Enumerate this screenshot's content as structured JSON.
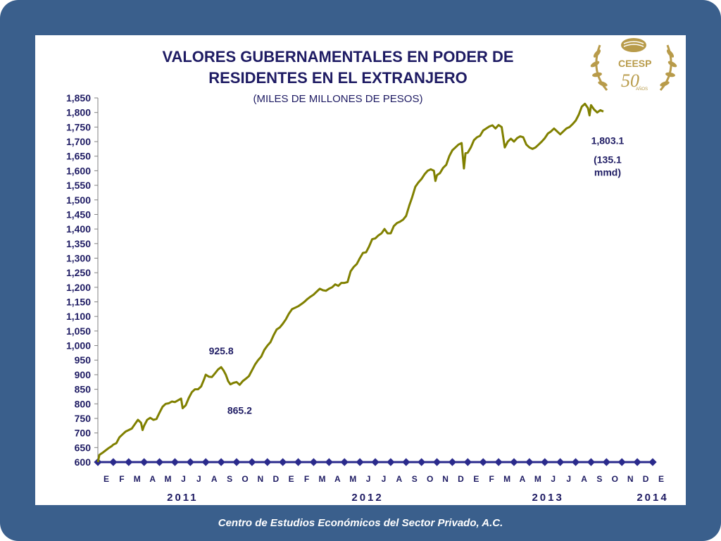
{
  "title_line1": "VALORES GUBERNAMENTALES EN PODER DE",
  "title_line2": "RESIDENTES EN EL EXTRANJERO",
  "subtitle": "(MILES DE MILLONES DE PESOS)",
  "footer": "Centro de Estudios Económicos del Sector Privado, A.C.",
  "logo": {
    "name": "CEESP",
    "anniversary": "50",
    "anos": "AÑOS"
  },
  "colors": {
    "background": "#3a5f8c",
    "line": "#808000",
    "text": "#1e1b63",
    "axis_markers": "#2a2a8c",
    "logo": "#b89b4a"
  },
  "chart_data": {
    "type": "line",
    "title": "VALORES GUBERNAMENTALES EN PODER DE RESIDENTES EN EL EXTRANJERO",
    "subtitle": "(MILES DE MILLONES DE PESOS)",
    "ylim": [
      600,
      1850
    ],
    "yticks": [
      "600",
      "650",
      "700",
      "750",
      "800",
      "850",
      "900",
      "950",
      "1,000",
      "1,050",
      "1,100",
      "1,150",
      "1,200",
      "1,250",
      "1,300",
      "1,350",
      "1,400",
      "1,450",
      "1,500",
      "1,550",
      "1,600",
      "1,650",
      "1,700",
      "1,750",
      "1,800",
      "1,850"
    ],
    "month_labels": [
      "E",
      "F",
      "M",
      "A",
      "M",
      "J",
      "J",
      "A",
      "S",
      "O",
      "N",
      "D",
      "E",
      "F",
      "M",
      "A",
      "M",
      "J",
      "J",
      "A",
      "S",
      "O",
      "N",
      "D",
      "E",
      "F",
      "M",
      "A",
      "M",
      "J",
      "J",
      "A",
      "S",
      "O",
      "N",
      "D",
      "E"
    ],
    "year_labels": [
      "2011",
      "2012",
      "2013",
      "2014"
    ],
    "x_unit": "months since Jan 2011",
    "series": [
      {
        "name": "",
        "points": [
          [
            0,
            600
          ],
          [
            0.1,
            625
          ],
          [
            0.3,
            632
          ],
          [
            0.5,
            640
          ],
          [
            0.7,
            648
          ],
          [
            0.9,
            655
          ],
          [
            1.0,
            660
          ],
          [
            1.2,
            665
          ],
          [
            1.4,
            685
          ],
          [
            1.6,
            695
          ],
          [
            1.8,
            705
          ],
          [
            2.0,
            710
          ],
          [
            2.2,
            715
          ],
          [
            2.4,
            730
          ],
          [
            2.6,
            745
          ],
          [
            2.8,
            735
          ],
          [
            2.9,
            710
          ],
          [
            3.0,
            725
          ],
          [
            3.2,
            745
          ],
          [
            3.4,
            752
          ],
          [
            3.6,
            745
          ],
          [
            3.8,
            748
          ],
          [
            4.0,
            770
          ],
          [
            4.2,
            790
          ],
          [
            4.4,
            800
          ],
          [
            4.6,
            802
          ],
          [
            4.8,
            808
          ],
          [
            5.0,
            806
          ],
          [
            5.2,
            812
          ],
          [
            5.4,
            818
          ],
          [
            5.5,
            785
          ],
          [
            5.7,
            795
          ],
          [
            5.9,
            820
          ],
          [
            6.1,
            840
          ],
          [
            6.3,
            850
          ],
          [
            6.5,
            850
          ],
          [
            6.7,
            860
          ],
          [
            6.9,
            885
          ],
          [
            7.0,
            900
          ],
          [
            7.2,
            893
          ],
          [
            7.4,
            892
          ],
          [
            7.6,
            905
          ],
          [
            7.8,
            918
          ],
          [
            8.0,
            925.8
          ],
          [
            8.15,
            915
          ],
          [
            8.3,
            900
          ],
          [
            8.45,
            878
          ],
          [
            8.6,
            867
          ],
          [
            8.8,
            872
          ],
          [
            9.0,
            875
          ],
          [
            9.2,
            865.2
          ],
          [
            9.4,
            878
          ],
          [
            9.6,
            886
          ],
          [
            9.8,
            895
          ],
          [
            10.0,
            915
          ],
          [
            10.2,
            935
          ],
          [
            10.4,
            950
          ],
          [
            10.6,
            962
          ],
          [
            10.8,
            985
          ],
          [
            11.0,
            1000
          ],
          [
            11.2,
            1012
          ],
          [
            11.4,
            1035
          ],
          [
            11.6,
            1055
          ],
          [
            11.8,
            1062
          ],
          [
            12.0,
            1075
          ],
          [
            12.2,
            1090
          ],
          [
            12.4,
            1110
          ],
          [
            12.6,
            1125
          ],
          [
            12.8,
            1130
          ],
          [
            13.0,
            1135
          ],
          [
            13.2,
            1142
          ],
          [
            13.4,
            1150
          ],
          [
            13.6,
            1160
          ],
          [
            13.8,
            1168
          ],
          [
            14.0,
            1175
          ],
          [
            14.2,
            1185
          ],
          [
            14.4,
            1195
          ],
          [
            14.6,
            1190
          ],
          [
            14.8,
            1188
          ],
          [
            15.0,
            1195
          ],
          [
            15.2,
            1200
          ],
          [
            15.4,
            1210
          ],
          [
            15.6,
            1205
          ],
          [
            15.8,
            1215
          ],
          [
            16.0,
            1215
          ],
          [
            16.2,
            1218
          ],
          [
            16.4,
            1255
          ],
          [
            16.6,
            1270
          ],
          [
            16.8,
            1280
          ],
          [
            17.0,
            1300
          ],
          [
            17.2,
            1318
          ],
          [
            17.4,
            1320
          ],
          [
            17.6,
            1340
          ],
          [
            17.8,
            1365
          ],
          [
            18.0,
            1368
          ],
          [
            18.2,
            1378
          ],
          [
            18.4,
            1385
          ],
          [
            18.6,
            1400
          ],
          [
            18.8,
            1385
          ],
          [
            19.0,
            1385
          ],
          [
            19.2,
            1410
          ],
          [
            19.4,
            1420
          ],
          [
            19.6,
            1425
          ],
          [
            19.8,
            1432
          ],
          [
            20.0,
            1445
          ],
          [
            20.2,
            1480
          ],
          [
            20.4,
            1510
          ],
          [
            20.6,
            1545
          ],
          [
            20.8,
            1560
          ],
          [
            21.0,
            1572
          ],
          [
            21.2,
            1588
          ],
          [
            21.4,
            1600
          ],
          [
            21.6,
            1605
          ],
          [
            21.8,
            1600
          ],
          [
            21.9,
            1565
          ],
          [
            22.0,
            1585
          ],
          [
            22.2,
            1592
          ],
          [
            22.4,
            1610
          ],
          [
            22.6,
            1620
          ],
          [
            22.8,
            1650
          ],
          [
            23.0,
            1670
          ],
          [
            23.2,
            1680
          ],
          [
            23.4,
            1690
          ],
          [
            23.6,
            1695
          ],
          [
            23.75,
            1608
          ],
          [
            23.85,
            1660
          ],
          [
            24.0,
            1662
          ],
          [
            24.2,
            1680
          ],
          [
            24.4,
            1705
          ],
          [
            24.6,
            1715
          ],
          [
            24.8,
            1720
          ],
          [
            25.0,
            1738
          ],
          [
            25.2,
            1745
          ],
          [
            25.4,
            1752
          ],
          [
            25.6,
            1756
          ],
          [
            25.8,
            1745
          ],
          [
            26.0,
            1757
          ],
          [
            26.2,
            1750
          ],
          [
            26.4,
            1680
          ],
          [
            26.6,
            1700
          ],
          [
            26.8,
            1710
          ],
          [
            27.0,
            1700
          ],
          [
            27.2,
            1712
          ],
          [
            27.4,
            1718
          ],
          [
            27.6,
            1715
          ],
          [
            27.8,
            1690
          ],
          [
            28.0,
            1680
          ],
          [
            28.2,
            1675
          ],
          [
            28.4,
            1680
          ],
          [
            28.6,
            1690
          ],
          [
            28.8,
            1700
          ],
          [
            29.0,
            1712
          ],
          [
            29.2,
            1728
          ],
          [
            29.4,
            1735
          ],
          [
            29.6,
            1745
          ],
          [
            29.8,
            1735
          ],
          [
            30.0,
            1725
          ],
          [
            30.2,
            1735
          ],
          [
            30.4,
            1745
          ],
          [
            30.6,
            1750
          ],
          [
            30.8,
            1760
          ],
          [
            31.0,
            1772
          ],
          [
            31.2,
            1792
          ],
          [
            31.4,
            1820
          ],
          [
            31.6,
            1830
          ],
          [
            31.8,
            1815
          ],
          [
            31.9,
            1790
          ],
          [
            32.0,
            1825
          ],
          [
            32.2,
            1810
          ],
          [
            32.4,
            1800
          ],
          [
            32.6,
            1808
          ],
          [
            32.8,
            1803.1
          ]
        ]
      }
    ],
    "annotations": [
      {
        "text": "925.8",
        "x": 8.0,
        "y": 925.8
      },
      {
        "text": "865.2",
        "x": 9.2,
        "y": 865.2
      },
      {
        "text": "1,803.1",
        "x": 32.8,
        "y": 1803.1
      },
      {
        "text": "(135.1",
        "x": 32.8,
        "y": 1803.1
      },
      {
        "text": "mmd)",
        "x": 32.8,
        "y": 1803.1
      }
    ]
  }
}
